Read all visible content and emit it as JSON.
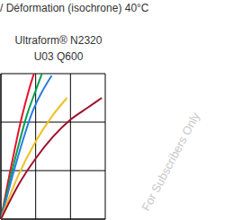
{
  "chart_data": {
    "type": "line",
    "title": "/ Déformation (isochrone) 40°C",
    "subtitle": [
      "Ultraform® N2320",
      "U03 Q600"
    ],
    "annotations": [
      "For Subscribers Only"
    ],
    "xlim": [
      0,
      3
    ],
    "ylim": [
      0,
      3
    ],
    "xticks": [
      0,
      1,
      2,
      3
    ],
    "yticks": [
      0,
      1,
      2,
      3
    ],
    "grid": true,
    "tick_labels": false,
    "series": [
      {
        "color": "#e8102a",
        "x": [
          0,
          0.2,
          0.4,
          0.6,
          0.8,
          0.95
        ],
        "values": [
          0,
          0.75,
          1.45,
          2.1,
          2.65,
          3.0
        ]
      },
      {
        "color": "#00a050",
        "x": [
          0,
          0.25,
          0.5,
          0.75,
          1.0,
          1.18
        ],
        "values": [
          0,
          0.78,
          1.5,
          2.15,
          2.65,
          3.0
        ]
      },
      {
        "color": "#2a7de1",
        "x": [
          0,
          0.3,
          0.6,
          0.9,
          1.2,
          1.46
        ],
        "values": [
          0,
          0.8,
          1.55,
          2.2,
          2.65,
          2.96
        ]
      },
      {
        "color": "#f0c020",
        "x": [
          0,
          0.5,
          1.0,
          1.5,
          1.9
        ],
        "values": [
          0,
          0.9,
          1.6,
          2.15,
          2.5
        ]
      },
      {
        "color": "#a0102a",
        "x": [
          0,
          0.5,
          1.0,
          1.5,
          2.0,
          2.5,
          2.9
        ],
        "values": [
          0,
          0.7,
          1.25,
          1.7,
          2.05,
          2.3,
          2.5
        ]
      }
    ]
  }
}
